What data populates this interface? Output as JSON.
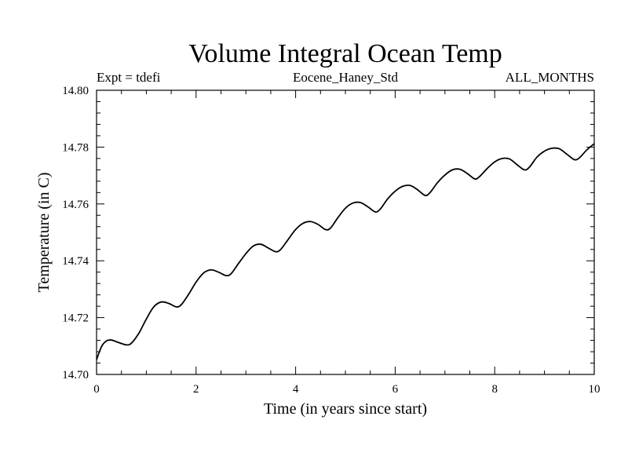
{
  "chart_data": {
    "type": "line",
    "title": "Volume Integral Ocean Temp",
    "subtitle_left": "Expt = tdefi",
    "subtitle_center": "Eocene_Haney_Std",
    "subtitle_right": "ALL_MONTHS",
    "xlabel": "Time (in years since start)",
    "ylabel": "Temperature (in C)",
    "xlim": [
      0,
      10
    ],
    "ylim": [
      14.7,
      14.8
    ],
    "xticks": [
      0,
      2,
      4,
      6,
      8,
      10
    ],
    "xtick_labels": [
      "0",
      "2",
      "4",
      "6",
      "8",
      "10"
    ],
    "yticks": [
      14.7,
      14.72,
      14.74,
      14.76,
      14.78,
      14.8
    ],
    "ytick_labels": [
      "14.70",
      "14.72",
      "14.74",
      "14.76",
      "14.78",
      "14.80"
    ],
    "grid": false,
    "line_color": "#000000",
    "series": [
      {
        "x": [
          0.0,
          0.1,
          0.2,
          0.3,
          0.45,
          0.6,
          0.7,
          0.85,
          1.0,
          1.15,
          1.3,
          1.45,
          1.6,
          1.7,
          1.85,
          2.0,
          2.15,
          2.3,
          2.45,
          2.6,
          2.7,
          2.85,
          3.0,
          3.15,
          3.3,
          3.45,
          3.6,
          3.7,
          3.85,
          4.0,
          4.15,
          4.3,
          4.45,
          4.6,
          4.7,
          4.85,
          5.0,
          5.15,
          5.3,
          5.45,
          5.6,
          5.7,
          5.85,
          6.0,
          6.15,
          6.3,
          6.45,
          6.6,
          6.7,
          6.85,
          7.0,
          7.15,
          7.3,
          7.45,
          7.6,
          7.7,
          7.85,
          8.0,
          8.15,
          8.3,
          8.45,
          8.6,
          8.7,
          8.85,
          9.0,
          9.15,
          9.3,
          9.45,
          9.6,
          9.7,
          9.85,
          10.0
        ],
        "y": [
          14.7052,
          14.7098,
          14.7118,
          14.7121,
          14.7112,
          14.7104,
          14.711,
          14.7145,
          14.7195,
          14.7238,
          14.7255,
          14.725,
          14.7238,
          14.7245,
          14.7282,
          14.7325,
          14.7357,
          14.7368,
          14.736,
          14.7348,
          14.7354,
          14.739,
          14.7425,
          14.7452,
          14.7458,
          14.7445,
          14.7432,
          14.744,
          14.7475,
          14.751,
          14.7532,
          14.7538,
          14.7528,
          14.751,
          14.7515,
          14.7552,
          14.7585,
          14.7603,
          14.7605,
          14.759,
          14.7572,
          14.7582,
          14.7618,
          14.7645,
          14.7662,
          14.7665,
          14.765,
          14.763,
          14.764,
          14.7675,
          14.7702,
          14.772,
          14.7722,
          14.7707,
          14.7688,
          14.7697,
          14.7725,
          14.7748,
          14.776,
          14.7758,
          14.7738,
          14.772,
          14.773,
          14.7765,
          14.7786,
          14.7796,
          14.7794,
          14.7775,
          14.7756,
          14.7762,
          14.779,
          14.7812
        ]
      }
    ]
  }
}
